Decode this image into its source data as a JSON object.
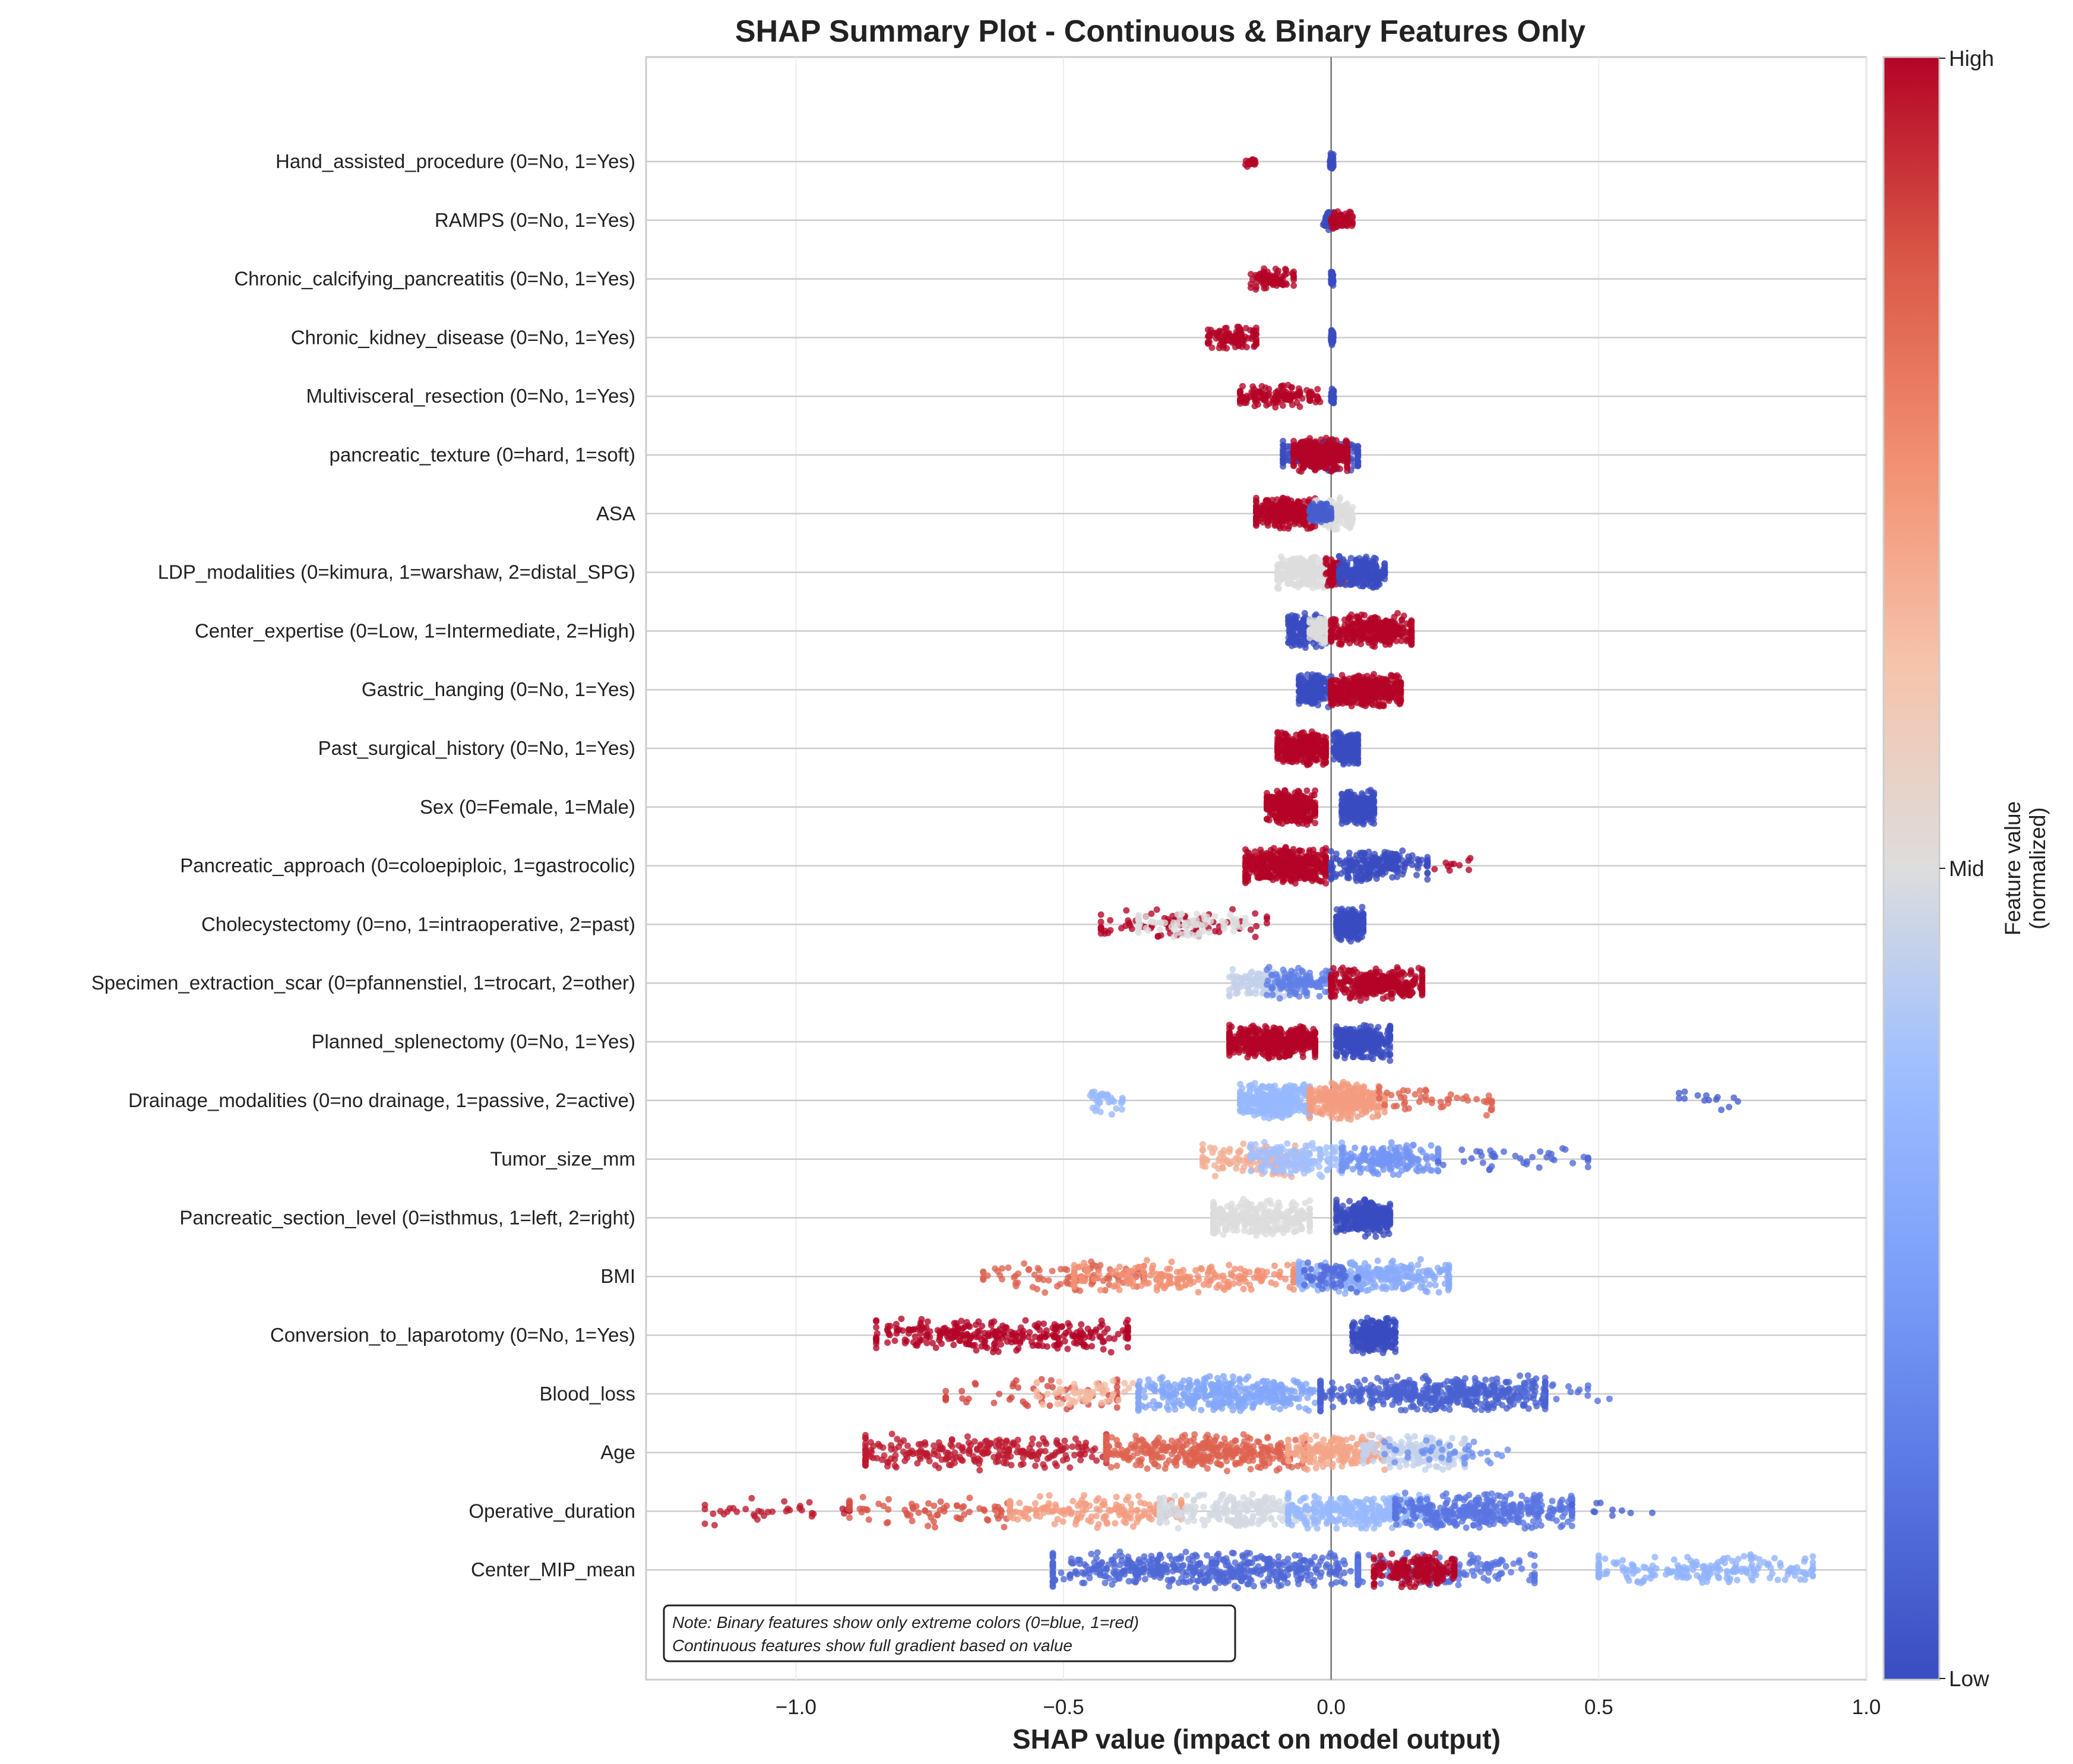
{
  "chart_data": {
    "type": "scatter",
    "subtype": "shap-beeswarm",
    "title": "SHAP Summary Plot - Continuous & Binary Features Only",
    "xlabel": "SHAP value (impact on model output)",
    "xlim": [
      -1.28,
      1.0
    ],
    "xticks": [
      -1.0,
      -0.5,
      0.0,
      0.5,
      1.0
    ],
    "xtick_labels": [
      "−1.0",
      "−0.5",
      "0.0",
      "0.5",
      "1.0"
    ],
    "grid": true,
    "colorbar": {
      "label": "Feature value\n(normalized)",
      "label_lines": [
        "Feature value",
        "(normalized)"
      ],
      "ticks": [
        "High",
        "Mid",
        "Low"
      ],
      "colormap": "coolwarm",
      "low_color": "#3a4cc0",
      "mid_color": "#dddddd",
      "high_color": "#b40426"
    },
    "note_lines": [
      "Note: Binary features show only extreme colors (0=blue, 1=red)",
      "Continuous features show full gradient based on value"
    ],
    "features": [
      {
        "name": "Hand_assisted_procedure (0=No, 1=Yes)",
        "clusters": [
          {
            "min": -0.16,
            "max": -0.14,
            "color": 1.0,
            "n": 25,
            "spread": 0.25
          },
          {
            "min": -0.002,
            "max": 0.004,
            "color": 0.0,
            "n": 70,
            "spread": 0.4
          }
        ]
      },
      {
        "name": "RAMPS (0=No, 1=Yes)",
        "clusters": [
          {
            "min": -0.015,
            "max": 0.005,
            "color": 0.0,
            "n": 60,
            "spread": 0.45
          },
          {
            "min": 0.0,
            "max": 0.04,
            "color": 1.0,
            "n": 60,
            "spread": 0.45
          }
        ]
      },
      {
        "name": "Chronic_calcifying_pancreatitis (0=No, 1=Yes)",
        "clusters": [
          {
            "min": -0.15,
            "max": -0.07,
            "color": 1.0,
            "n": 90,
            "spread": 0.55
          },
          {
            "min": 0.0,
            "max": 0.004,
            "color": 0.0,
            "n": 60,
            "spread": 0.35
          }
        ]
      },
      {
        "name": "Chronic_kidney_disease (0=No, 1=Yes)",
        "clusters": [
          {
            "min": -0.23,
            "max": -0.14,
            "color": 1.0,
            "n": 110,
            "spread": 0.6
          },
          {
            "min": 0.0,
            "max": 0.004,
            "color": 0.0,
            "n": 60,
            "spread": 0.35
          }
        ]
      },
      {
        "name": "Multivisceral_resection (0=No, 1=Yes)",
        "clusters": [
          {
            "min": -0.17,
            "max": -0.04,
            "color": 1.0,
            "n": 130,
            "spread": 0.55
          },
          {
            "min": 0.0,
            "max": 0.005,
            "color": 0.0,
            "n": 60,
            "spread": 0.35
          },
          {
            "min": -0.04,
            "max": -0.02,
            "color": 1.0,
            "n": 12,
            "spread": 0.5
          }
        ]
      },
      {
        "name": "pancreatic_texture (0=hard, 1=soft)",
        "clusters": [
          {
            "min": -0.09,
            "max": 0.05,
            "color": 0.0,
            "n": 160,
            "spread": 0.75
          },
          {
            "min": -0.07,
            "max": 0.03,
            "color": 1.0,
            "n": 320,
            "spread": 0.8
          }
        ]
      },
      {
        "name": "ASA",
        "clusters": [
          {
            "min": -0.14,
            "max": -0.03,
            "color": 1.0,
            "n": 300,
            "spread": 0.75
          },
          {
            "min": -0.03,
            "max": 0.04,
            "color": 0.5,
            "n": 140,
            "spread": 0.75
          },
          {
            "min": -0.04,
            "max": 0.0,
            "color": 0.05,
            "n": 90,
            "spread": 0.55
          }
        ]
      },
      {
        "name": "LDP_modalities (0=kimura, 1=warshaw, 2=distal_SPG)",
        "clusters": [
          {
            "min": -0.1,
            "max": -0.01,
            "color": 0.5,
            "n": 220,
            "spread": 0.8
          },
          {
            "min": -0.01,
            "max": 0.025,
            "color": 1.0,
            "n": 100,
            "spread": 0.7
          },
          {
            "min": 0.015,
            "max": 0.1,
            "color": 0.0,
            "n": 220,
            "spread": 0.8
          }
        ]
      },
      {
        "name": "Center_expertise (0=Low, 1=Intermediate, 2=High)",
        "clusters": [
          {
            "min": -0.08,
            "max": -0.01,
            "color": 0.0,
            "n": 180,
            "spread": 0.8
          },
          {
            "min": -0.04,
            "max": 0.005,
            "color": 0.5,
            "n": 90,
            "spread": 0.7
          },
          {
            "min": 0.0,
            "max": 0.15,
            "color": 1.0,
            "n": 320,
            "spread": 0.8
          }
        ]
      },
      {
        "name": "Gastric_hanging (0=No, 1=Yes)",
        "clusters": [
          {
            "min": -0.06,
            "max": 0.0,
            "color": 0.0,
            "n": 220,
            "spread": 0.8
          },
          {
            "min": 0.0,
            "max": 0.13,
            "color": 1.0,
            "n": 380,
            "spread": 0.8
          }
        ]
      },
      {
        "name": "Past_surgical_history (0=No, 1=Yes)",
        "clusters": [
          {
            "min": -0.1,
            "max": -0.01,
            "color": 1.0,
            "n": 320,
            "spread": 0.8
          },
          {
            "min": 0.005,
            "max": 0.05,
            "color": 0.0,
            "n": 240,
            "spread": 0.8
          }
        ]
      },
      {
        "name": "Sex (0=Female, 1=Male)",
        "clusters": [
          {
            "min": -0.12,
            "max": -0.03,
            "color": 1.0,
            "n": 320,
            "spread": 0.8
          },
          {
            "min": 0.02,
            "max": 0.08,
            "color": 0.0,
            "n": 260,
            "spread": 0.8
          }
        ]
      },
      {
        "name": "Pancreatic_approach (0=coloepiploic, 1=gastrocolic)",
        "clusters": [
          {
            "min": -0.16,
            "max": -0.01,
            "color": 1.0,
            "n": 440,
            "spread": 0.85
          },
          {
            "min": 0.0,
            "max": 0.18,
            "color": 0.0,
            "n": 220,
            "spread": 0.75
          },
          {
            "min": 0.18,
            "max": 0.26,
            "color": 1.0,
            "n": 10,
            "spread": 0.4
          }
        ]
      },
      {
        "name": "Cholecystectomy (0=no, 1=intraoperative, 2=past)",
        "clusters": [
          {
            "min": -0.43,
            "max": -0.12,
            "color": 1.0,
            "n": 80,
            "spread": 0.7
          },
          {
            "min": -0.36,
            "max": -0.16,
            "color": 0.5,
            "n": 80,
            "spread": 0.6
          },
          {
            "min": 0.01,
            "max": 0.06,
            "color": 0.0,
            "n": 200,
            "spread": 0.8
          }
        ]
      },
      {
        "name": "Specimen_extraction_scar (0=pfannenstiel, 1=trocart, 2=other)",
        "clusters": [
          {
            "min": -0.19,
            "max": -0.08,
            "color": 0.45,
            "n": 120,
            "spread": 0.7
          },
          {
            "min": -0.12,
            "max": 0.0,
            "color": 0.15,
            "n": 120,
            "spread": 0.75
          },
          {
            "min": 0.0,
            "max": 0.17,
            "color": 1.0,
            "n": 340,
            "spread": 0.8
          }
        ]
      },
      {
        "name": "Planned_splenectomy (0=No, 1=Yes)",
        "clusters": [
          {
            "min": -0.19,
            "max": -0.03,
            "color": 1.0,
            "n": 440,
            "spread": 0.8
          },
          {
            "min": 0.01,
            "max": 0.11,
            "color": 0.0,
            "n": 300,
            "spread": 0.85
          }
        ]
      },
      {
        "name": "Drainage_modalities (0=no drainage, 1=passive, 2=active)",
        "clusters": [
          {
            "min": -0.45,
            "max": -0.39,
            "color": 0.35,
            "n": 35,
            "spread": 0.7
          },
          {
            "min": -0.17,
            "max": -0.04,
            "color": 0.35,
            "n": 320,
            "spread": 0.85
          },
          {
            "min": -0.04,
            "max": 0.1,
            "color": 0.72,
            "n": 300,
            "spread": 0.85
          },
          {
            "min": 0.09,
            "max": 0.3,
            "color": 0.85,
            "n": 50,
            "spread": 0.7
          },
          {
            "min": 0.65,
            "max": 0.76,
            "color": 0.05,
            "n": 14,
            "spread": 0.5
          }
        ]
      },
      {
        "name": "Tumor_size_mm",
        "clusters": [
          {
            "min": -0.24,
            "max": -0.05,
            "color": 0.68,
            "n": 120,
            "spread": 0.8
          },
          {
            "min": -0.15,
            "max": 0.02,
            "color": 0.38,
            "n": 160,
            "spread": 0.8
          },
          {
            "min": 0.02,
            "max": 0.2,
            "color": 0.22,
            "n": 200,
            "spread": 0.8
          },
          {
            "min": 0.2,
            "max": 0.48,
            "color": 0.08,
            "n": 40,
            "spread": 0.6
          }
        ]
      },
      {
        "name": "Pancreatic_section_level (0=isthmus, 1=left, 2=right)",
        "clusters": [
          {
            "min": -0.22,
            "max": -0.04,
            "color": 0.5,
            "n": 300,
            "spread": 0.85
          },
          {
            "min": 0.01,
            "max": 0.11,
            "color": 0.0,
            "n": 300,
            "spread": 0.85
          }
        ]
      },
      {
        "name": "BMI",
        "clusters": [
          {
            "min": -0.65,
            "max": -0.35,
            "color": 0.85,
            "n": 90,
            "spread": 0.75
          },
          {
            "min": -0.48,
            "max": -0.07,
            "color": 0.75,
            "n": 200,
            "spread": 0.75
          },
          {
            "min": -0.06,
            "max": 0.22,
            "color": 0.3,
            "n": 280,
            "spread": 0.8
          },
          {
            "min": -0.05,
            "max": 0.05,
            "color": 0.1,
            "n": 60,
            "spread": 0.7
          }
        ]
      },
      {
        "name": "Conversion_to_laparotomy (0=No, 1=Yes)",
        "clusters": [
          {
            "min": -0.85,
            "max": -0.38,
            "color": 1.0,
            "n": 300,
            "spread": 0.8
          },
          {
            "min": 0.04,
            "max": 0.12,
            "color": 0.0,
            "n": 240,
            "spread": 0.85
          }
        ]
      },
      {
        "name": "Blood_loss",
        "clusters": [
          {
            "min": -0.72,
            "max": -0.4,
            "color": 0.9,
            "n": 60,
            "spread": 0.7
          },
          {
            "min": -0.55,
            "max": -0.36,
            "color": 0.65,
            "n": 60,
            "spread": 0.7
          },
          {
            "min": -0.36,
            "max": -0.02,
            "color": 0.28,
            "n": 380,
            "spread": 0.85
          },
          {
            "min": -0.02,
            "max": 0.4,
            "color": 0.06,
            "n": 480,
            "spread": 0.85
          },
          {
            "min": 0.35,
            "max": 0.52,
            "color": 0.1,
            "n": 20,
            "spread": 0.6
          }
        ]
      },
      {
        "name": "Age",
        "clusters": [
          {
            "min": -0.87,
            "max": -0.42,
            "color": 0.97,
            "n": 260,
            "spread": 0.85
          },
          {
            "min": -0.42,
            "max": -0.05,
            "color": 0.85,
            "n": 380,
            "spread": 0.85
          },
          {
            "min": -0.08,
            "max": 0.1,
            "color": 0.7,
            "n": 220,
            "spread": 0.8
          },
          {
            "min": 0.06,
            "max": 0.25,
            "color": 0.45,
            "n": 180,
            "spread": 0.8
          },
          {
            "min": 0.1,
            "max": 0.33,
            "color": 0.2,
            "n": 40,
            "spread": 0.6
          }
        ]
      },
      {
        "name": "Operative_duration",
        "clusters": [
          {
            "min": -1.17,
            "max": -0.9,
            "color": 0.97,
            "n": 40,
            "spread": 0.65
          },
          {
            "min": -0.9,
            "max": -0.6,
            "color": 0.88,
            "n": 70,
            "spread": 0.75
          },
          {
            "min": -0.6,
            "max": -0.28,
            "color": 0.72,
            "n": 180,
            "spread": 0.75
          },
          {
            "min": -0.32,
            "max": -0.03,
            "color": 0.48,
            "n": 260,
            "spread": 0.8
          },
          {
            "min": -0.08,
            "max": 0.18,
            "color": 0.35,
            "n": 320,
            "spread": 0.85
          },
          {
            "min": 0.12,
            "max": 0.45,
            "color": 0.12,
            "n": 360,
            "spread": 0.85
          },
          {
            "min": 0.45,
            "max": 0.6,
            "color": 0.05,
            "n": 10,
            "spread": 0.5
          }
        ]
      },
      {
        "name": "Center_MIP_mean",
        "clusters": [
          {
            "min": -0.52,
            "max": 0.05,
            "color": 0.08,
            "n": 520,
            "spread": 0.85
          },
          {
            "min": 0.05,
            "max": 0.38,
            "color": 0.12,
            "n": 150,
            "spread": 0.8
          },
          {
            "min": 0.08,
            "max": 0.23,
            "color": 1.0,
            "n": 200,
            "spread": 0.8
          },
          {
            "min": 0.5,
            "max": 0.9,
            "color": 0.33,
            "n": 200,
            "spread": 0.75
          }
        ]
      }
    ]
  }
}
